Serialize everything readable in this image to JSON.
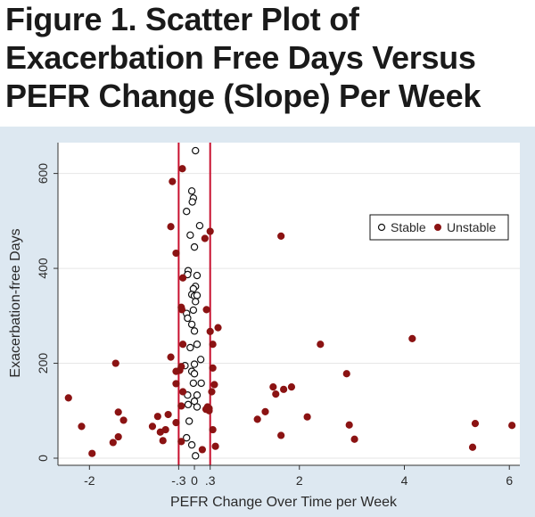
{
  "title_lines": [
    "Figure 1. Scatter Plot of",
    "Exacerbation Free Days Versus",
    "PEFR Change (Slope) Per Week"
  ],
  "colors": {
    "panel_bg": "#dde8f1",
    "stable_edge": "#111111",
    "unstable_fill": "#8b1313",
    "reference_line": "#c8102e"
  },
  "chart_data": {
    "type": "scatter",
    "title": "Figure 1. Scatter Plot of Exacerbation Free Days Versus PEFR Change (Slope) Per Week",
    "xlabel": "PEFR Change Over Time per Week",
    "ylabel": "Exacerbation-free Days",
    "xlim": [
      -2.6,
      6.2
    ],
    "ylim": [
      -15,
      665
    ],
    "xticks": [
      -2,
      -0.3,
      0,
      0.3,
      2,
      4,
      6
    ],
    "xtick_labels": [
      "-2",
      "-.3",
      "0",
      ".3",
      "2",
      "4",
      "6"
    ],
    "yticks": [
      0,
      200,
      400,
      600
    ],
    "ytick_labels": [
      "0",
      "200",
      "400",
      "600"
    ],
    "reference_lines_x": [
      -0.3,
      0.3
    ],
    "grid": "horizontal",
    "legend": {
      "placement": "top-right",
      "entries": [
        "Stable",
        "Unstable"
      ]
    },
    "series": [
      {
        "name": "Stable",
        "marker": "open-circle",
        "points": [
          [
            0.02,
            648
          ],
          [
            -0.05,
            563
          ],
          [
            -0.02,
            548
          ],
          [
            -0.04,
            540
          ],
          [
            -0.15,
            520
          ],
          [
            0.1,
            490
          ],
          [
            -0.08,
            470
          ],
          [
            0.0,
            445
          ],
          [
            -0.12,
            395
          ],
          [
            -0.13,
            387
          ],
          [
            0.05,
            385
          ],
          [
            0.02,
            362
          ],
          [
            -0.02,
            357
          ],
          [
            -0.05,
            345
          ],
          [
            0.0,
            342
          ],
          [
            0.05,
            343
          ],
          [
            0.02,
            330
          ],
          [
            -0.02,
            312
          ],
          [
            -0.15,
            305
          ],
          [
            -0.13,
            295
          ],
          [
            -0.05,
            282
          ],
          [
            0.0,
            268
          ],
          [
            0.05,
            240
          ],
          [
            -0.08,
            233
          ],
          [
            0.12,
            208
          ],
          [
            -0.18,
            195
          ],
          [
            0.0,
            198
          ],
          [
            -0.05,
            183
          ],
          [
            0.0,
            178
          ],
          [
            -0.02,
            158
          ],
          [
            0.13,
            158
          ],
          [
            -0.13,
            133
          ],
          [
            0.05,
            133
          ],
          [
            0.0,
            120
          ],
          [
            -0.12,
            113
          ],
          [
            0.05,
            108
          ],
          [
            -0.1,
            78
          ],
          [
            -0.15,
            43
          ],
          [
            -0.05,
            28
          ],
          [
            0.02,
            5
          ]
        ]
      },
      {
        "name": "Unstable",
        "marker": "filled-circle",
        "points": [
          [
            -0.23,
            610
          ],
          [
            -0.42,
            583
          ],
          [
            -0.45,
            488
          ],
          [
            0.3,
            478
          ],
          [
            0.2,
            463
          ],
          [
            1.65,
            468
          ],
          [
            -0.35,
            432
          ],
          [
            -0.22,
            380
          ],
          [
            -0.25,
            318
          ],
          [
            -0.24,
            313
          ],
          [
            0.23,
            313
          ],
          [
            0.45,
            275
          ],
          [
            0.3,
            267
          ],
          [
            0.35,
            240
          ],
          [
            2.4,
            240
          ],
          [
            4.15,
            252
          ],
          [
            -0.22,
            240
          ],
          [
            -1.5,
            200
          ],
          [
            -0.45,
            213
          ],
          [
            0.35,
            190
          ],
          [
            2.9,
            178
          ],
          [
            -0.25,
            193
          ],
          [
            -0.28,
            185
          ],
          [
            -0.35,
            183
          ],
          [
            0.38,
            155
          ],
          [
            1.5,
            150
          ],
          [
            1.85,
            150
          ],
          [
            1.7,
            145
          ],
          [
            0.33,
            140
          ],
          [
            1.55,
            135
          ],
          [
            -0.35,
            157
          ],
          [
            -0.22,
            140
          ],
          [
            -2.4,
            127
          ],
          [
            0.25,
            108
          ],
          [
            0.28,
            105
          ],
          [
            0.22,
            103
          ],
          [
            0.28,
            100
          ],
          [
            -0.25,
            110
          ],
          [
            1.35,
            98
          ],
          [
            -0.7,
            88
          ],
          [
            -1.45,
            97
          ],
          [
            -0.5,
            92
          ],
          [
            -1.35,
            80
          ],
          [
            2.15,
            87
          ],
          [
            1.2,
            82
          ],
          [
            -0.35,
            75
          ],
          [
            -2.15,
            67
          ],
          [
            -0.8,
            67
          ],
          [
            -0.55,
            60
          ],
          [
            0.35,
            60
          ],
          [
            1.65,
            48
          ],
          [
            -1.45,
            45
          ],
          [
            -1.55,
            33
          ],
          [
            -0.6,
            37
          ],
          [
            -0.25,
            35
          ],
          [
            0.15,
            18
          ],
          [
            3.05,
            40
          ],
          [
            2.95,
            70
          ],
          [
            5.35,
            73
          ],
          [
            6.05,
            69
          ],
          [
            5.3,
            23
          ],
          [
            0.4,
            25
          ],
          [
            -1.95,
            10
          ],
          [
            -0.65,
            55
          ]
        ]
      }
    ]
  }
}
